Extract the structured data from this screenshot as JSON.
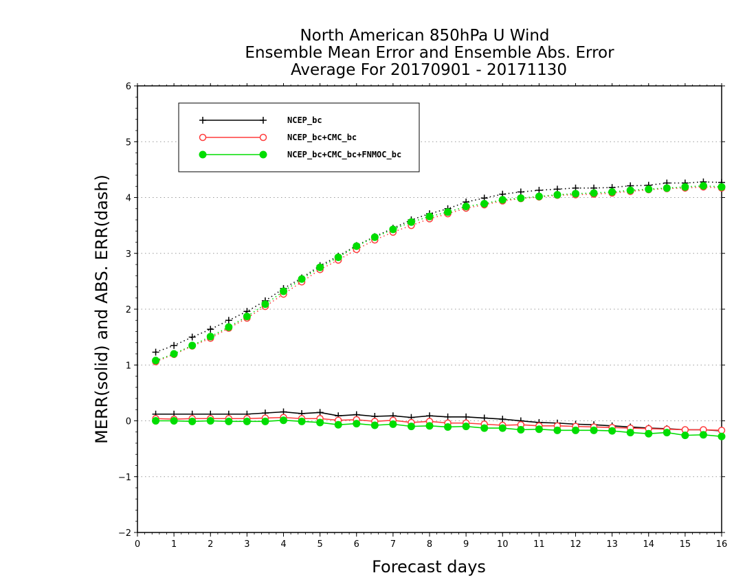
{
  "chart_data": {
    "type": "line",
    "title": [
      "North American 850hPa U Wind",
      "Ensemble Mean Error and Ensemble Abs. Error",
      "Average For 20170901 - 20171130"
    ],
    "xlabel": "Forecast days",
    "ylabel": "MERR(solid) and ABS. ERR(dash)",
    "xlim": [
      0,
      16
    ],
    "ylim": [
      -2,
      6
    ],
    "xticks": [
      "0",
      "1",
      "2",
      "3",
      "4",
      "5",
      "6",
      "7",
      "8",
      "9",
      "10",
      "11",
      "12",
      "13",
      "14",
      "15",
      "16"
    ],
    "yticks": [
      "−2",
      "−1",
      "0",
      "1",
      "2",
      "3",
      "4",
      "5",
      "6"
    ],
    "grid": "horizontal dotted",
    "legend_position": "top-left",
    "x": [
      0.5,
      1,
      1.5,
      2,
      2.5,
      3,
      3.5,
      4,
      4.5,
      5,
      5.5,
      6,
      6.5,
      7,
      7.5,
      8,
      8.5,
      9,
      9.5,
      10,
      10.5,
      11,
      11.5,
      12,
      12.5,
      13,
      13.5,
      14,
      14.5,
      15,
      15.5,
      16
    ],
    "series": [
      {
        "name": "NCEP_bc",
        "color": "#000000",
        "marker": "plus",
        "merr": [
          0.12,
          0.12,
          0.12,
          0.12,
          0.12,
          0.12,
          0.14,
          0.16,
          0.13,
          0.15,
          0.09,
          0.11,
          0.08,
          0.09,
          0.06,
          0.09,
          0.07,
          0.07,
          0.05,
          0.03,
          0.0,
          -0.03,
          -0.04,
          -0.06,
          -0.07,
          -0.09,
          -0.11,
          -0.13,
          -0.14,
          -0.16,
          -0.16,
          -0.18
        ],
        "abserr": [
          1.23,
          1.35,
          1.5,
          1.64,
          1.8,
          1.96,
          2.15,
          2.37,
          2.56,
          2.78,
          2.95,
          3.14,
          3.3,
          3.45,
          3.6,
          3.71,
          3.8,
          3.92,
          3.99,
          4.06,
          4.1,
          4.13,
          4.15,
          4.17,
          4.17,
          4.18,
          4.21,
          4.22,
          4.26,
          4.26,
          4.28,
          4.27
        ]
      },
      {
        "name": "NCEP_bc+CMC_bc",
        "color": "#ff3b3b",
        "marker": "open-circle",
        "merr": [
          0.04,
          0.03,
          0.04,
          0.04,
          0.04,
          0.04,
          0.05,
          0.06,
          0.04,
          0.04,
          0.01,
          0.02,
          -0.01,
          0.01,
          -0.03,
          -0.01,
          -0.04,
          -0.04,
          -0.06,
          -0.08,
          -0.07,
          -0.09,
          -0.09,
          -0.1,
          -0.11,
          -0.12,
          -0.13,
          -0.14,
          -0.15,
          -0.16,
          -0.16,
          -0.17
        ],
        "abserr": [
          1.06,
          1.19,
          1.34,
          1.48,
          1.66,
          1.84,
          2.05,
          2.27,
          2.49,
          2.71,
          2.88,
          3.07,
          3.24,
          3.38,
          3.5,
          3.62,
          3.71,
          3.81,
          3.87,
          3.94,
          3.98,
          4.01,
          4.04,
          4.05,
          4.06,
          4.08,
          4.11,
          4.14,
          4.16,
          4.17,
          4.19,
          4.17
        ]
      },
      {
        "name": "NCEP_bc+CMC_bc+FNMOC_bc",
        "color": "#00dd00",
        "marker": "filled-circle",
        "merr": [
          0.0,
          0.0,
          -0.01,
          0.0,
          -0.01,
          -0.01,
          -0.01,
          0.01,
          -0.01,
          -0.03,
          -0.07,
          -0.05,
          -0.08,
          -0.06,
          -0.1,
          -0.09,
          -0.11,
          -0.1,
          -0.13,
          -0.13,
          -0.16,
          -0.15,
          -0.17,
          -0.17,
          -0.17,
          -0.18,
          -0.21,
          -0.23,
          -0.21,
          -0.26,
          -0.25,
          -0.28
        ],
        "abserr": [
          1.08,
          1.2,
          1.35,
          1.51,
          1.68,
          1.87,
          2.09,
          2.32,
          2.54,
          2.75,
          2.93,
          3.13,
          3.29,
          3.43,
          3.56,
          3.66,
          3.74,
          3.84,
          3.89,
          3.96,
          3.99,
          4.02,
          4.05,
          4.07,
          4.08,
          4.1,
          4.13,
          4.15,
          4.17,
          4.19,
          4.21,
          4.19
        ]
      }
    ]
  }
}
